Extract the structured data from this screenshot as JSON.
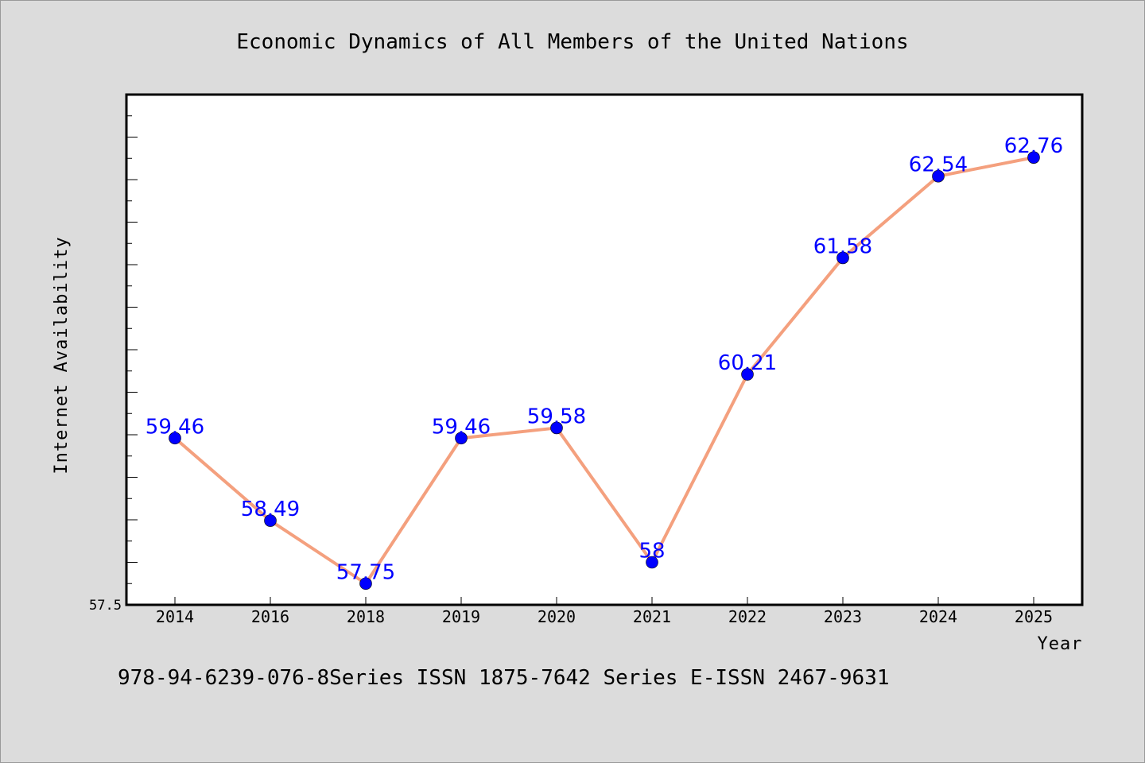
{
  "chart_data": {
    "type": "line",
    "title": "Economic Dynamics of All Members of the United Nations",
    "xlabel": "Year",
    "ylabel": "Internet Availability",
    "categories": [
      "2014",
      "2016",
      "2018",
      "2019",
      "2020",
      "2021",
      "2022",
      "2023",
      "2024",
      "2025"
    ],
    "series": [
      {
        "values": [
          59.46,
          58.49,
          57.75,
          59.46,
          59.58,
          58,
          60.21,
          61.58,
          62.54,
          62.76
        ],
        "data_labels": [
          "59.46",
          "58.49",
          "57.75",
          "59.46",
          "59.58",
          "58",
          "60.21",
          "61.58",
          "62.54",
          "62.76"
        ]
      }
    ],
    "yticks": [
      "57.5"
    ],
    "ylim": [
      57.5,
      63.5
    ],
    "grid": false,
    "line_color": "#f4a07e",
    "marker_color": "#0000ff",
    "label_color": "#0000ff",
    "plot_background": "#ffffff",
    "page_background": "#dcdcdc"
  },
  "footnote": "978-94-6239-076-8Series ISSN 1875-7642 Series E-ISSN 2467-9631"
}
